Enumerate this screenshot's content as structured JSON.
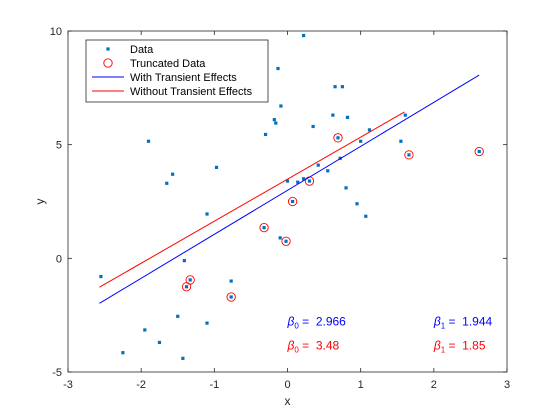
{
  "chart_data": {
    "type": "scatter",
    "xlabel": "x",
    "ylabel": "y",
    "xlim": [
      -3,
      3
    ],
    "ylim": [
      -5,
      10
    ],
    "xticks": [
      -3,
      -2,
      -1,
      0,
      1,
      2,
      3
    ],
    "yticks": [
      -5,
      0,
      5,
      10
    ],
    "xtick_labels": [
      "-3",
      "-2",
      "-1",
      "0",
      "1",
      "2",
      "3"
    ],
    "ytick_labels": [
      "-5",
      "0",
      "5",
      "10"
    ],
    "grid": false,
    "legend_position": "top-left",
    "legend": [
      {
        "label": "Data",
        "marker": "square",
        "color": "#0072BD"
      },
      {
        "label": "Truncated Data",
        "marker": "circle-open",
        "color": "#FF0000"
      },
      {
        "label": "With Transient Effects",
        "marker": "line",
        "color": "#0000FF"
      },
      {
        "label": "Without Transient Effects",
        "marker": "line",
        "color": "#FF0000"
      }
    ],
    "series": [
      {
        "name": "Data",
        "color": "#0072BD",
        "points": [
          [
            -2.55,
            -0.8
          ],
          [
            -2.25,
            -4.15
          ],
          [
            -1.95,
            -3.15
          ],
          [
            -1.9,
            5.15
          ],
          [
            -1.75,
            -3.7
          ],
          [
            -1.65,
            3.3
          ],
          [
            -1.57,
            3.7
          ],
          [
            -1.5,
            -2.55
          ],
          [
            -1.43,
            -4.4
          ],
          [
            -1.41,
            -0.1
          ],
          [
            -1.38,
            -1.25
          ],
          [
            -1.33,
            -0.95
          ],
          [
            -1.1,
            1.95
          ],
          [
            -1.1,
            -2.85
          ],
          [
            -0.97,
            4.0
          ],
          [
            -0.77,
            -1.7
          ],
          [
            -0.77,
            -1.0
          ],
          [
            -0.32,
            1.35
          ],
          [
            -0.3,
            5.45
          ],
          [
            -0.18,
            6.1
          ],
          [
            -0.16,
            5.95
          ],
          [
            -0.13,
            8.35
          ],
          [
            -0.09,
            6.7
          ],
          [
            -0.1,
            0.9
          ],
          [
            -0.02,
            0.75
          ],
          [
            0.0,
            3.4
          ],
          [
            0.07,
            2.5
          ],
          [
            0.14,
            3.35
          ],
          [
            0.22,
            3.5
          ],
          [
            0.3,
            3.4
          ],
          [
            0.22,
            9.8
          ],
          [
            0.35,
            5.8
          ],
          [
            0.42,
            4.1
          ],
          [
            0.55,
            3.85
          ],
          [
            0.62,
            6.3
          ],
          [
            0.65,
            7.55
          ],
          [
            0.72,
            4.4
          ],
          [
            0.69,
            5.3
          ],
          [
            0.75,
            7.55
          ],
          [
            0.8,
            3.1
          ],
          [
            0.82,
            6.2
          ],
          [
            0.95,
            2.4
          ],
          [
            1.0,
            5.15
          ],
          [
            1.07,
            1.85
          ],
          [
            1.12,
            5.65
          ],
          [
            1.55,
            5.15
          ],
          [
            1.61,
            6.3
          ],
          [
            1.66,
            4.55
          ],
          [
            2.62,
            4.7
          ]
        ]
      },
      {
        "name": "Truncated Data",
        "color": "#FF0000",
        "points": [
          [
            -1.38,
            -1.25
          ],
          [
            -1.33,
            -0.95
          ],
          [
            -0.77,
            -1.7
          ],
          [
            -0.32,
            1.35
          ],
          [
            -0.02,
            0.75
          ],
          [
            0.07,
            2.5
          ],
          [
            0.3,
            3.4
          ],
          [
            0.69,
            5.3
          ],
          [
            1.66,
            4.55
          ],
          [
            2.62,
            4.7
          ]
        ]
      },
      {
        "name": "With Transient Effects",
        "type": "line",
        "color": "#0000FF",
        "points": [
          [
            -2.57,
            -1.98
          ],
          [
            2.62,
            8.06
          ]
        ]
      },
      {
        "name": "Without Transient Effects",
        "type": "line",
        "color": "#FF0000",
        "points": [
          [
            -2.57,
            -1.27
          ],
          [
            1.6,
            6.44
          ]
        ]
      }
    ],
    "annotations": [
      {
        "symbol": "β",
        "subscript": "0",
        "text": " =  2.966",
        "color": "#0000FF",
        "x": 0.0,
        "y": -2.95
      },
      {
        "symbol": "β",
        "subscript": "1",
        "text": " =  1.944",
        "color": "#0000FF",
        "x": 2.0,
        "y": -2.95
      },
      {
        "symbol": "β",
        "subscript": "0",
        "text": " =  3.48",
        "color": "#FF0000",
        "x": 0.0,
        "y": -4.0
      },
      {
        "symbol": "β",
        "subscript": "1",
        "text": " =  1.85",
        "color": "#FF0000",
        "x": 2.0,
        "y": -4.0
      }
    ]
  }
}
